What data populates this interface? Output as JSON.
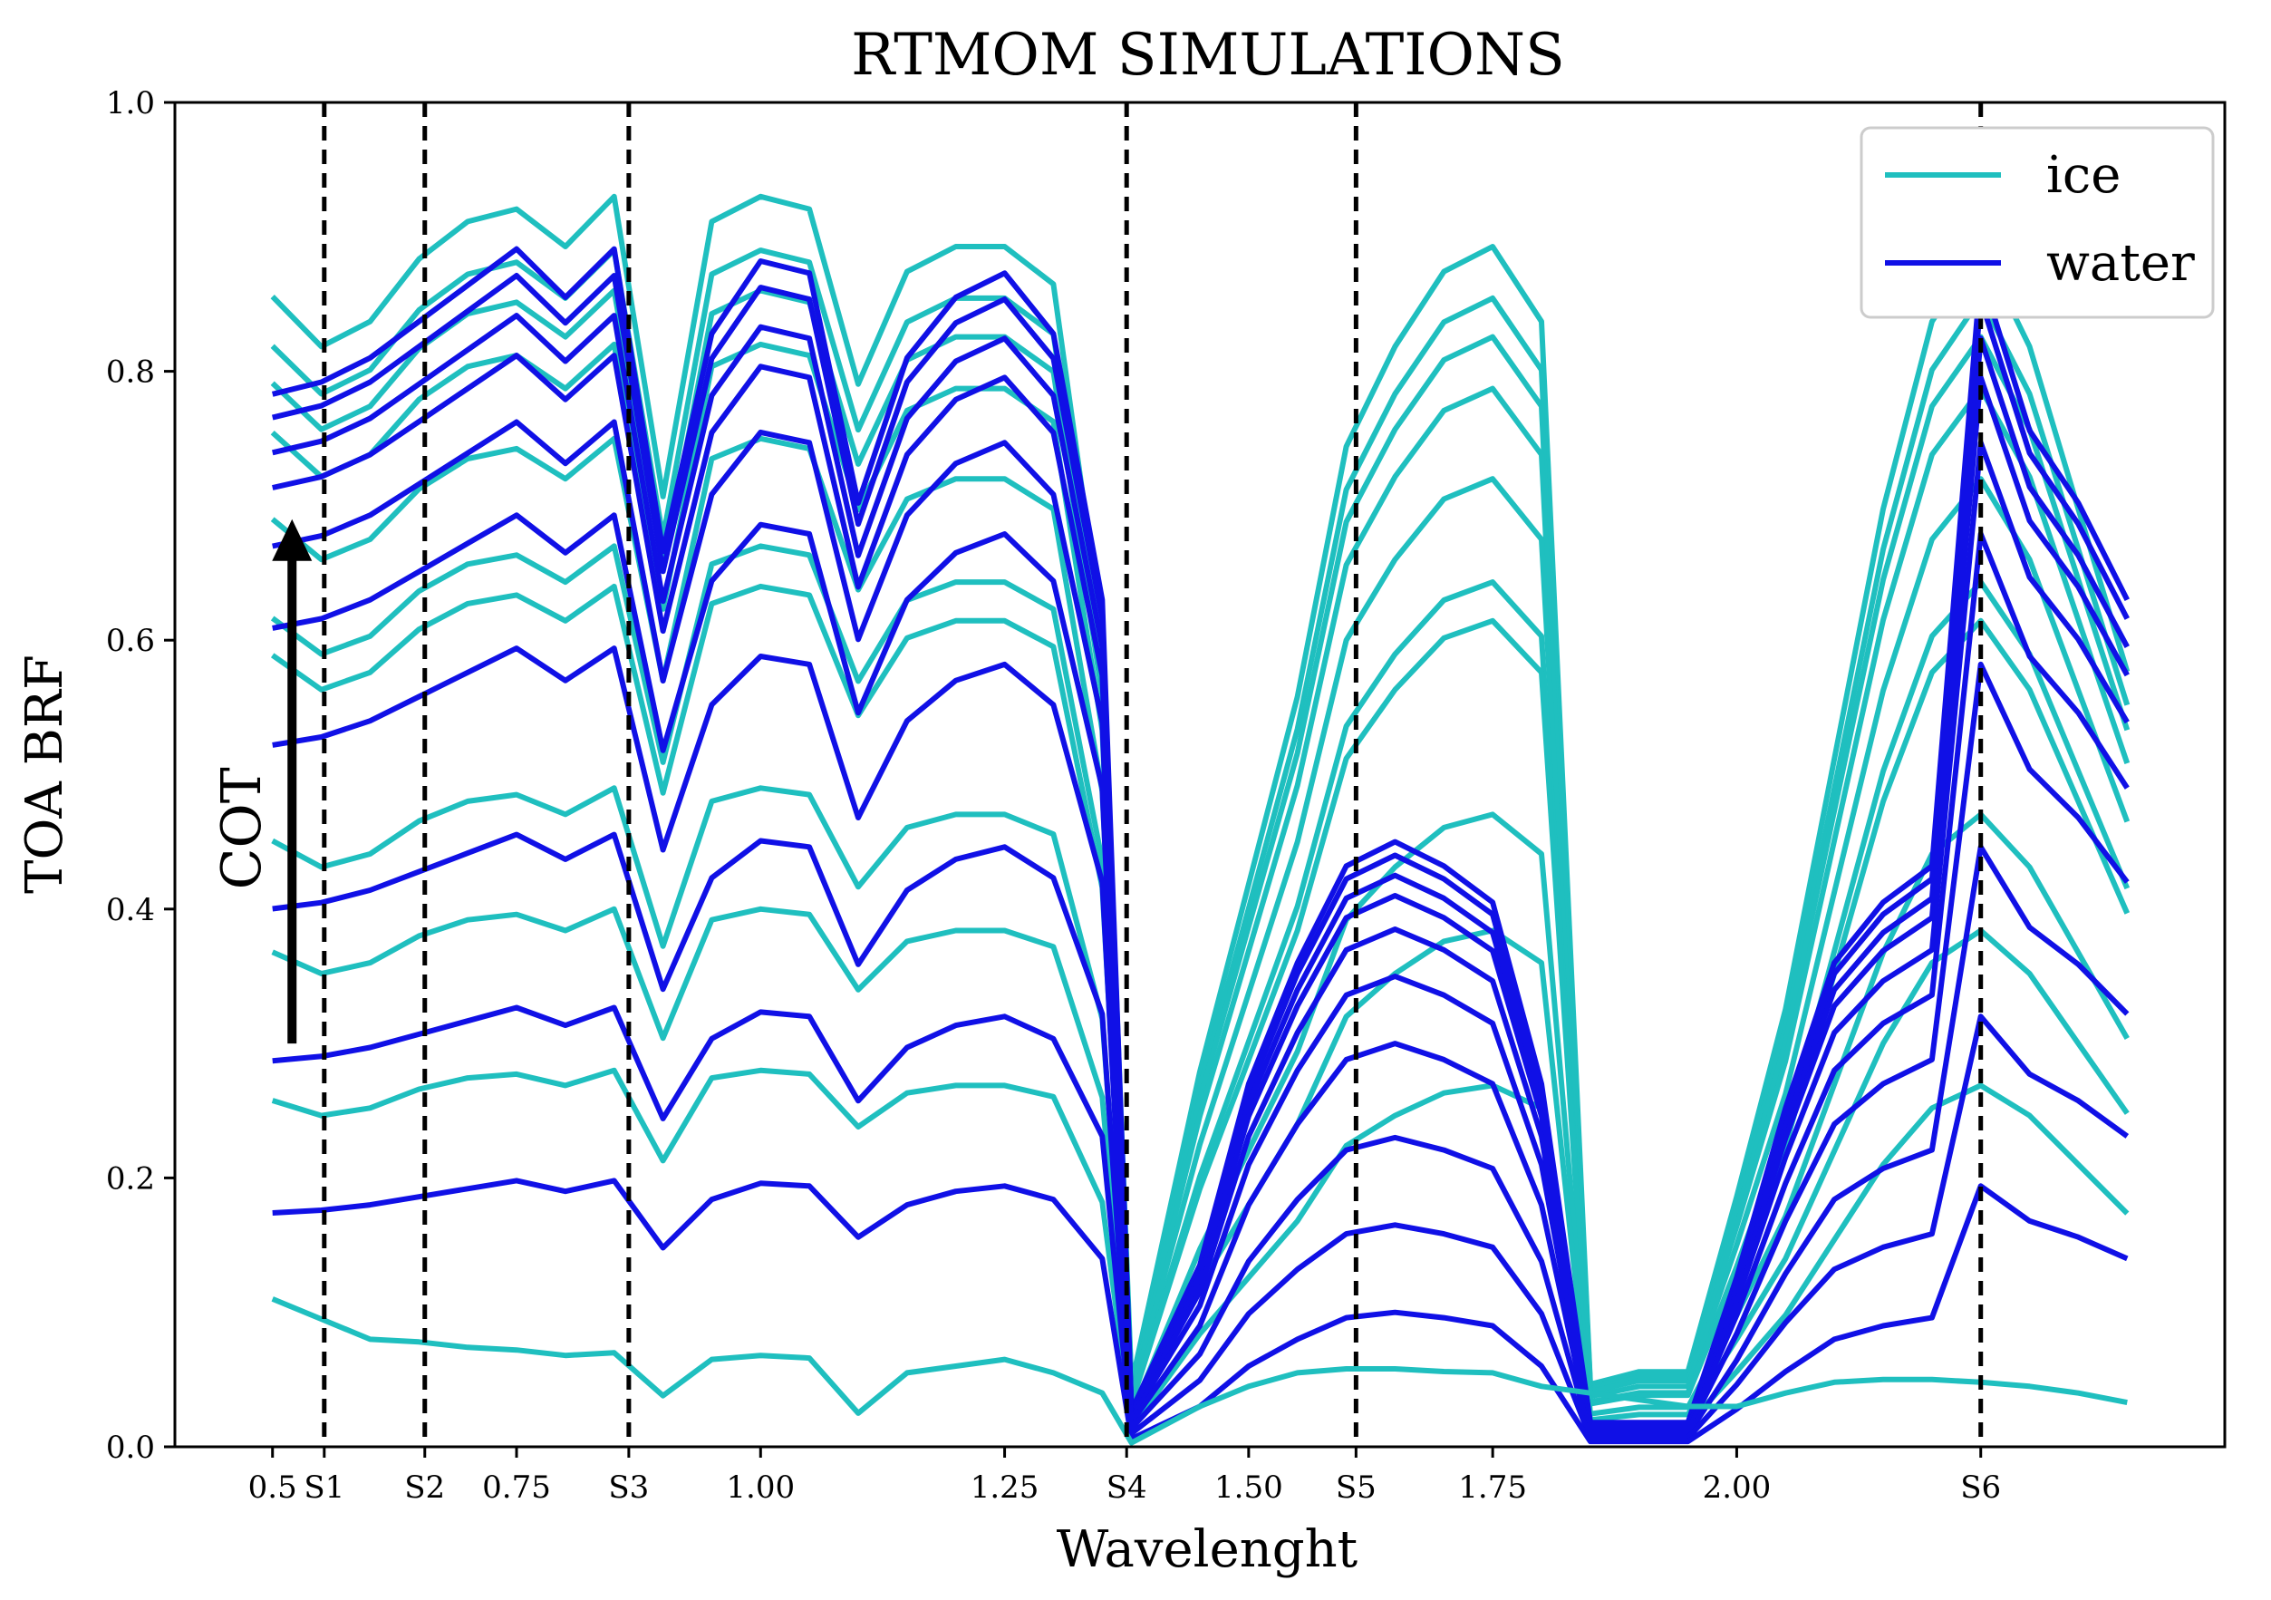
{
  "chart_data": {
    "type": "line",
    "title": "RTMOM SIMULATIONS",
    "xlabel": "Wavelenght",
    "ylabel": "TOA BRF",
    "xlim": [
      0.4,
      2.5
    ],
    "ylim": [
      0.0,
      1.0
    ],
    "grid": false,
    "legend_position": "top-right",
    "colors": {
      "ice": "#1fbfbf",
      "water": "#1010e6",
      "axis": "#000000"
    },
    "yticks": [
      0.0,
      0.2,
      0.4,
      0.6,
      0.8,
      1.0
    ],
    "ytick_labels": [
      "0.0",
      "0.2",
      "0.4",
      "0.6",
      "0.8",
      "1.0"
    ],
    "xticks": [
      {
        "value": 0.5,
        "label": "0.5"
      },
      {
        "value": 0.553,
        "label": "S1"
      },
      {
        "value": 0.656,
        "label": "S2"
      },
      {
        "value": 0.75,
        "label": "0.75"
      },
      {
        "value": 0.865,
        "label": "S3"
      },
      {
        "value": 1.0,
        "label": "1.00"
      },
      {
        "value": 1.25,
        "label": "1.25"
      },
      {
        "value": 1.375,
        "label": "S4"
      },
      {
        "value": 1.5,
        "label": "1.50"
      },
      {
        "value": 1.61,
        "label": "S5"
      },
      {
        "value": 1.75,
        "label": "1.75"
      },
      {
        "value": 2.0,
        "label": "2.00"
      },
      {
        "value": 2.25,
        "label": "S6"
      }
    ],
    "vlines": [
      {
        "value": 0.553,
        "label": "S1"
      },
      {
        "value": 0.656,
        "label": "S2"
      },
      {
        "value": 0.865,
        "label": "S3"
      },
      {
        "value": 1.375,
        "label": "S4"
      },
      {
        "value": 1.61,
        "label": "S5"
      },
      {
        "value": 2.25,
        "label": "S6"
      }
    ],
    "legend": [
      {
        "name": "ice",
        "color": "#1fbfbf"
      },
      {
        "name": "water",
        "color": "#1010e6"
      }
    ],
    "annotation": {
      "text": "COT",
      "arrow_from_y": 0.3,
      "arrow_to_y": 0.69,
      "arrow_x": 0.52
    },
    "knots": [
      0.5,
      0.55,
      0.6,
      0.65,
      0.7,
      0.75,
      0.8,
      0.85,
      0.9,
      0.95,
      1.0,
      1.05,
      1.1,
      1.15,
      1.2,
      1.25,
      1.3,
      1.35,
      1.38,
      1.45,
      1.5,
      1.55,
      1.6,
      1.65,
      1.7,
      1.75,
      1.8,
      1.85,
      1.9,
      1.95,
      2.0,
      2.05,
      2.1,
      2.15,
      2.2,
      2.25,
      2.3,
      2.35,
      2.4
    ],
    "shapes": {
      "ice": [
        0.92,
        0.88,
        0.9,
        0.95,
        0.98,
        0.99,
        0.96,
        1.0,
        0.76,
        0.98,
        1.0,
        0.99,
        0.85,
        0.94,
        0.96,
        0.96,
        0.93,
        0.65,
        0.05,
        0.3,
        0.45,
        0.6,
        0.8,
        0.88,
        0.94,
        0.96,
        0.9,
        0.05,
        0.06,
        0.06,
        0.2,
        0.35,
        0.55,
        0.75,
        0.9,
        0.96,
        0.88,
        0.75,
        0.62
      ],
      "water": [
        0.87,
        0.88,
        0.9,
        0.93,
        0.96,
        0.99,
        0.95,
        0.99,
        0.74,
        0.92,
        0.98,
        0.97,
        0.78,
        0.9,
        0.95,
        0.97,
        0.92,
        0.7,
        0.03,
        0.15,
        0.3,
        0.4,
        0.48,
        0.5,
        0.48,
        0.45,
        0.3,
        0.02,
        0.02,
        0.02,
        0.14,
        0.28,
        0.4,
        0.45,
        0.48,
        0.97,
        0.84,
        0.78,
        0.7
      ]
    },
    "series": [
      {
        "name": "ice",
        "type": "ice",
        "scale": 0.93,
        "offset": 0.0
      },
      {
        "name": "ice",
        "type": "ice",
        "scale": 0.89,
        "offset": 0.0
      },
      {
        "name": "ice",
        "type": "ice",
        "scale": 0.86,
        "offset": 0.0
      },
      {
        "name": "ice",
        "type": "ice",
        "scale": 0.82,
        "offset": 0.0
      },
      {
        "name": "ice",
        "type": "ice",
        "scale": 0.75,
        "offset": 0.0
      },
      {
        "name": "ice",
        "type": "ice",
        "scale": 0.67,
        "offset": 0.0
      },
      {
        "name": "ice",
        "type": "ice",
        "scale": 0.64,
        "offset": 0.0
      },
      {
        "name": "ice",
        "type": "ice",
        "scale": 0.49,
        "offset": 0.0
      },
      {
        "name": "ice",
        "type": "ice",
        "scale": 0.4,
        "offset": 0.0
      },
      {
        "name": "ice",
        "type": "ice",
        "scale": 0.28,
        "offset": 0.0
      },
      {
        "name": "water",
        "type": "water",
        "scale": 0.9,
        "offset": 0.0
      },
      {
        "name": "water",
        "type": "water",
        "scale": 0.88,
        "offset": 0.0
      },
      {
        "name": "water",
        "type": "water",
        "scale": 0.85,
        "offset": 0.0
      },
      {
        "name": "water",
        "type": "water",
        "scale": 0.82,
        "offset": 0.0
      },
      {
        "name": "water",
        "type": "water",
        "scale": 0.77,
        "offset": 0.0
      },
      {
        "name": "water",
        "type": "water",
        "scale": 0.7,
        "offset": 0.0
      },
      {
        "name": "water",
        "type": "water",
        "scale": 0.6,
        "offset": 0.0
      },
      {
        "name": "water",
        "type": "water",
        "scale": 0.46,
        "offset": 0.0
      },
      {
        "name": "water",
        "type": "water",
        "scale": 0.33,
        "offset": 0.0
      },
      {
        "name": "water",
        "type": "water",
        "scale": 0.2,
        "offset": 0.0
      },
      {
        "name": "ice",
        "type": "clear",
        "values": [
          0.11,
          0.095,
          0.08,
          0.078,
          0.074,
          0.072,
          0.068,
          0.07,
          0.038,
          0.065,
          0.068,
          0.066,
          0.025,
          0.055,
          0.06,
          0.065,
          0.055,
          0.04,
          0.003,
          0.03,
          0.045,
          0.055,
          0.058,
          0.058,
          0.056,
          0.055,
          0.045,
          0.04,
          0.035,
          0.03,
          0.03,
          0.04,
          0.048,
          0.05,
          0.05,
          0.048,
          0.045,
          0.04,
          0.033
        ]
      }
    ]
  }
}
